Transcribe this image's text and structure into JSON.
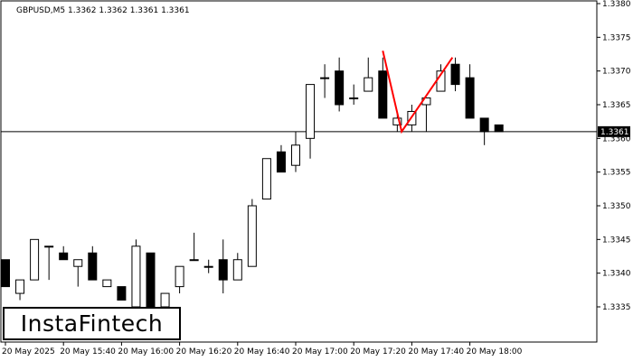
{
  "chart_data": {
    "type": "candlestick",
    "title": "GBPUSD,M5  1.3362 1.3362 1.3361 1.3361",
    "symbol": "GBPUSD",
    "timeframe": "M5",
    "ohlc_header": [
      1.3362,
      1.3362,
      1.3361,
      1.3361
    ],
    "ylim": [
      1.3328,
      1.338
    ],
    "y_ticks": [
      "1.3380",
      "1.3375",
      "1.3370",
      "1.3365",
      "1.3360",
      "1.3355",
      "1.3350",
      "1.3345",
      "1.3340",
      "1.3335"
    ],
    "x_ticks": [
      {
        "i": 0,
        "label": "20 May 2025"
      },
      {
        "i": 4,
        "label": "20 May 15:40"
      },
      {
        "i": 8,
        "label": "20 May 16:00"
      },
      {
        "i": 12,
        "label": "20 May 16:20"
      },
      {
        "i": 16,
        "label": "20 May 16:40"
      },
      {
        "i": 20,
        "label": "20 May 17:00"
      },
      {
        "i": 24,
        "label": "20 May 17:20"
      },
      {
        "i": 28,
        "label": "20 May 17:40"
      },
      {
        "i": 32,
        "label": "20 May 18:00"
      }
    ],
    "candles": [
      {
        "o": 1.3342,
        "h": 1.3342,
        "l": 1.3338,
        "c": 1.3338
      },
      {
        "o": 1.3337,
        "h": 1.3339,
        "l": 1.3336,
        "c": 1.3339
      },
      {
        "o": 1.3339,
        "h": 1.3345,
        "l": 1.3339,
        "c": 1.3345
      },
      {
        "o": 1.3344,
        "h": 1.3344,
        "l": 1.3339,
        "c": 1.3344
      },
      {
        "o": 1.3343,
        "h": 1.3344,
        "l": 1.3342,
        "c": 1.3342
      },
      {
        "o": 1.3341,
        "h": 1.3342,
        "l": 1.3338,
        "c": 1.3342
      },
      {
        "o": 1.3343,
        "h": 1.3344,
        "l": 1.3339,
        "c": 1.3339
      },
      {
        "o": 1.3338,
        "h": 1.3339,
        "l": 1.3338,
        "c": 1.3339
      },
      {
        "o": 1.3338,
        "h": 1.3338,
        "l": 1.3336,
        "c": 1.3336
      },
      {
        "o": 1.3335,
        "h": 1.3345,
        "l": 1.3335,
        "c": 1.3344
      },
      {
        "o": 1.3343,
        "h": 1.3343,
        "l": 1.3335,
        "c": 1.3335
      },
      {
        "o": 1.3335,
        "h": 1.3337,
        "l": 1.3334,
        "c": 1.3337
      },
      {
        "o": 1.3338,
        "h": 1.3341,
        "l": 1.3337,
        "c": 1.3341
      },
      {
        "o": 1.3342,
        "h": 1.3346,
        "l": 1.3342,
        "c": 1.3342
      },
      {
        "o": 1.3341,
        "h": 1.3342,
        "l": 1.334,
        "c": 1.3341
      },
      {
        "o": 1.3342,
        "h": 1.3345,
        "l": 1.3337,
        "c": 1.3339
      },
      {
        "o": 1.3339,
        "h": 1.3343,
        "l": 1.3339,
        "c": 1.3342
      },
      {
        "o": 1.3341,
        "h": 1.3351,
        "l": 1.3341,
        "c": 1.335
      },
      {
        "o": 1.3351,
        "h": 1.3357,
        "l": 1.3351,
        "c": 1.3357
      },
      {
        "o": 1.3358,
        "h": 1.3359,
        "l": 1.3355,
        "c": 1.3355
      },
      {
        "o": 1.3356,
        "h": 1.3361,
        "l": 1.3355,
        "c": 1.3359
      },
      {
        "o": 1.336,
        "h": 1.3368,
        "l": 1.3357,
        "c": 1.3368
      },
      {
        "o": 1.3369,
        "h": 1.3371,
        "l": 1.3366,
        "c": 1.3369
      },
      {
        "o": 1.337,
        "h": 1.3372,
        "l": 1.3364,
        "c": 1.3365
      },
      {
        "o": 1.3366,
        "h": 1.3368,
        "l": 1.3365,
        "c": 1.3366
      },
      {
        "o": 1.3367,
        "h": 1.3372,
        "l": 1.3367,
        "c": 1.3369
      },
      {
        "o": 1.337,
        "h": 1.3372,
        "l": 1.3363,
        "c": 1.3363
      },
      {
        "o": 1.3362,
        "h": 1.3364,
        "l": 1.3361,
        "c": 1.3363
      },
      {
        "o": 1.3362,
        "h": 1.3365,
        "l": 1.3361,
        "c": 1.3364
      },
      {
        "o": 1.3365,
        "h": 1.3366,
        "l": 1.3361,
        "c": 1.3366
      },
      {
        "o": 1.3367,
        "h": 1.3371,
        "l": 1.3367,
        "c": 1.337
      },
      {
        "o": 1.3371,
        "h": 1.3372,
        "l": 1.3367,
        "c": 1.3368
      },
      {
        "o": 1.3369,
        "h": 1.3371,
        "l": 1.3363,
        "c": 1.3363
      },
      {
        "o": 1.3363,
        "h": 1.3363,
        "l": 1.3359,
        "c": 1.3361
      },
      {
        "o": 1.3362,
        "h": 1.3362,
        "l": 1.3361,
        "c": 1.3361
      }
    ],
    "current_price": 1.3361,
    "current_price_label": "1.3361",
    "pattern_line": [
      {
        "i": 26,
        "p": 1.3373
      },
      {
        "i": 27.3,
        "p": 1.3361
      },
      {
        "i": 30.8,
        "p": 1.3372
      }
    ],
    "pattern_color": "#ff0000"
  },
  "logo": {
    "text": "InstaFintech"
  }
}
